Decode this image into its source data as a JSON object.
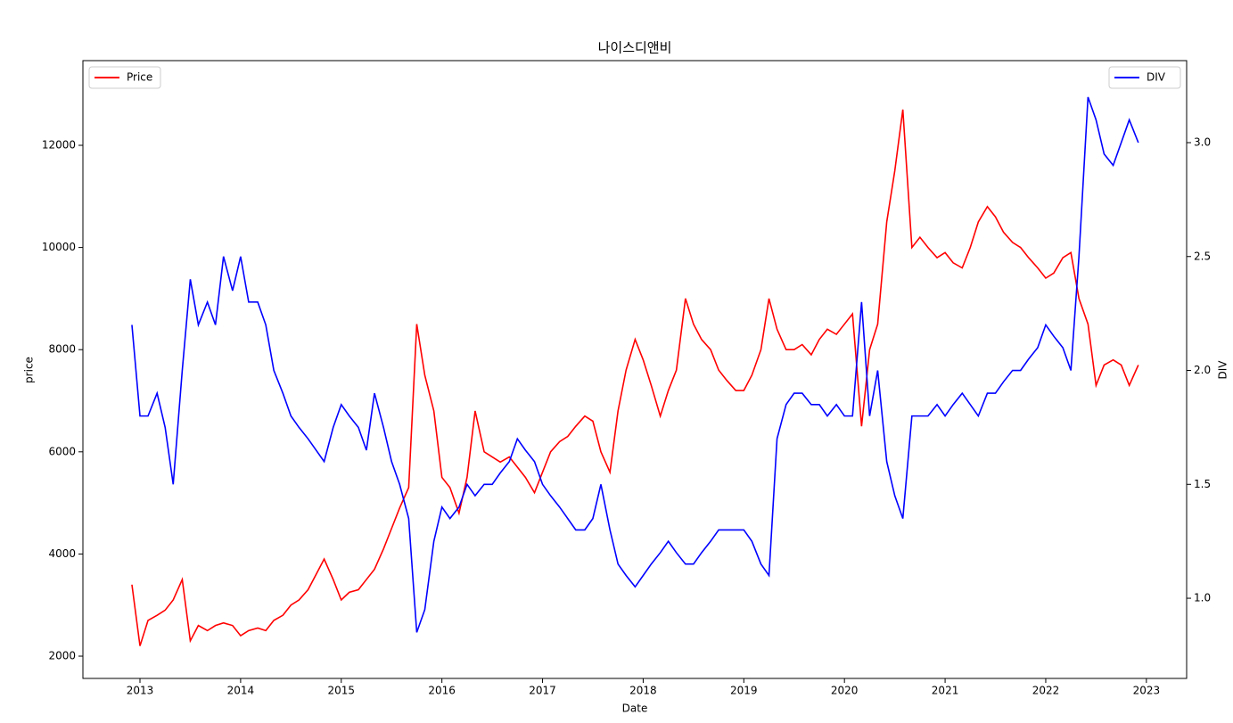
{
  "chart_data": {
    "type": "line",
    "title": "나이스디앤비",
    "x_label": "Date",
    "y_label": "price",
    "y2_label": "DIV",
    "x": [
      2012.92,
      2013.0,
      2013.08,
      2013.17,
      2013.25,
      2013.33,
      2013.42,
      2013.5,
      2013.58,
      2013.67,
      2013.75,
      2013.83,
      2013.92,
      2014.0,
      2014.08,
      2014.17,
      2014.25,
      2014.33,
      2014.42,
      2014.5,
      2014.58,
      2014.67,
      2014.75,
      2014.83,
      2014.92,
      2015.0,
      2015.08,
      2015.17,
      2015.25,
      2015.33,
      2015.42,
      2015.5,
      2015.58,
      2015.67,
      2015.75,
      2015.83,
      2015.92,
      2016.0,
      2016.08,
      2016.17,
      2016.25,
      2016.33,
      2016.42,
      2016.5,
      2016.58,
      2016.67,
      2016.75,
      2016.83,
      2016.92,
      2017.0,
      2017.08,
      2017.17,
      2017.25,
      2017.33,
      2017.42,
      2017.5,
      2017.58,
      2017.67,
      2017.75,
      2017.83,
      2017.92,
      2018.0,
      2018.08,
      2018.17,
      2018.25,
      2018.33,
      2018.42,
      2018.5,
      2018.58,
      2018.67,
      2018.75,
      2018.83,
      2018.92,
      2019.0,
      2019.08,
      2019.17,
      2019.25,
      2019.33,
      2019.42,
      2019.5,
      2019.58,
      2019.67,
      2019.75,
      2019.83,
      2019.92,
      2020.0,
      2020.08,
      2020.17,
      2020.25,
      2020.33,
      2020.42,
      2020.5,
      2020.58,
      2020.67,
      2020.75,
      2020.83,
      2020.92,
      2021.0,
      2021.08,
      2021.17,
      2021.25,
      2021.33,
      2021.42,
      2021.5,
      2021.58,
      2021.67,
      2021.75,
      2021.83,
      2021.92,
      2022.0,
      2022.08,
      2022.17,
      2022.25,
      2022.33,
      2022.42,
      2022.5,
      2022.58,
      2022.67,
      2022.75,
      2022.83,
      2022.92
    ],
    "xlim": [
      2012.433,
      2023.4
    ],
    "xticks": [
      2013,
      2014,
      2015,
      2016,
      2017,
      2018,
      2019,
      2020,
      2021,
      2022,
      2023
    ],
    "ylim": [
      1564,
      13658
    ],
    "yticks": [
      2000,
      4000,
      6000,
      8000,
      10000,
      12000
    ],
    "y2lim": [
      0.648,
      3.36
    ],
    "y2ticks": [
      {
        "value": 1,
        "label": "1.0"
      },
      {
        "value": 1.5,
        "label": "1.5"
      },
      {
        "value": 2,
        "label": "2.0"
      },
      {
        "value": 2.5,
        "label": "2.5"
      },
      {
        "value": 3,
        "label": "3.0"
      }
    ],
    "series": [
      {
        "name": "Price",
        "color": "#ff0000",
        "legend": "upper left",
        "values": [
          3400,
          2200,
          2700,
          2800,
          2900,
          3100,
          3500,
          2300,
          2600,
          2500,
          2600,
          2650,
          2600,
          2400,
          2500,
          2550,
          2500,
          2700,
          2800,
          3000,
          3100,
          3300,
          3600,
          3900,
          3500,
          3100,
          3250,
          3300,
          3500,
          3700,
          4100,
          4500,
          4900,
          5300,
          8500,
          7500,
          6800,
          5500,
          5300,
          4800,
          5500,
          6800,
          6000,
          5900,
          5800,
          5900,
          5700,
          5500,
          5200,
          5600,
          6000,
          6200,
          6300,
          6500,
          6700,
          6600,
          6000,
          5600,
          6800,
          7600,
          8200,
          7800,
          7300,
          6700,
          7200,
          7600,
          9000,
          8500,
          8200,
          8000,
          7600,
          7400,
          7200,
          7200,
          7500,
          8000,
          9000,
          8400,
          8000,
          8000,
          8100,
          7900,
          8200,
          8400,
          8300,
          8500,
          8700,
          6500,
          8000,
          8500,
          10500,
          11500,
          12700,
          10000,
          10200,
          10000,
          9800,
          9900,
          9700,
          9600,
          10000,
          10500,
          10800,
          10600,
          10300,
          10100,
          10000,
          9800,
          9600,
          9400,
          9500,
          9800,
          9900,
          9000,
          8500,
          7300,
          7700,
          7800,
          7700,
          7300,
          7700
        ]
      },
      {
        "name": "DIV",
        "color": "#0000ff",
        "axis": "y2",
        "legend": "upper right",
        "values": [
          2.2,
          1.8,
          1.8,
          1.9,
          1.75,
          1.5,
          2.0,
          2.4,
          2.2,
          2.3,
          2.2,
          2.5,
          2.35,
          2.5,
          2.3,
          2.3,
          2.2,
          2.0,
          1.9,
          1.8,
          1.75,
          1.7,
          1.65,
          1.6,
          1.75,
          1.85,
          1.8,
          1.75,
          1.65,
          1.9,
          1.75,
          1.6,
          1.5,
          1.35,
          0.85,
          0.95,
          1.25,
          1.4,
          1.35,
          1.4,
          1.5,
          1.45,
          1.5,
          1.5,
          1.55,
          1.6,
          1.7,
          1.65,
          1.6,
          1.5,
          1.45,
          1.4,
          1.35,
          1.3,
          1.3,
          1.35,
          1.5,
          1.3,
          1.15,
          1.1,
          1.05,
          1.1,
          1.15,
          1.2,
          1.25,
          1.2,
          1.15,
          1.15,
          1.2,
          1.25,
          1.3,
          1.3,
          1.3,
          1.3,
          1.25,
          1.15,
          1.1,
          1.7,
          1.85,
          1.9,
          1.9,
          1.85,
          1.85,
          1.8,
          1.85,
          1.8,
          1.8,
          2.3,
          1.8,
          2.0,
          1.6,
          1.45,
          1.35,
          1.8,
          1.8,
          1.8,
          1.85,
          1.8,
          1.85,
          1.9,
          1.85,
          1.8,
          1.9,
          1.9,
          1.95,
          2.0,
          2.0,
          2.05,
          2.1,
          2.2,
          2.15,
          2.1,
          2.0,
          2.5,
          3.2,
          3.1,
          2.95,
          2.9,
          3.0,
          3.1,
          3.0
        ]
      }
    ]
  }
}
